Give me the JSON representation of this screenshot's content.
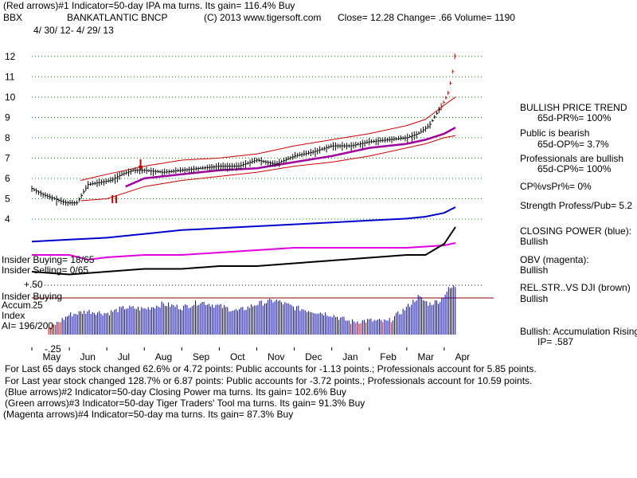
{
  "header": {
    "line1": "(Red arrows)#1 Indicator=50-day IPA ma turns. Its gain= 116.4% Buy",
    "symbol": "BBX",
    "company": "BANKATLANTIC BNCP",
    "copyright": "(C) 2013 www.tigersoft.com",
    "quote": "Close=  12.28  Change= .66 Volume= 1190",
    "date_range": "4/ 30/ 12- 4/ 29/ 13"
  },
  "sidebar": {
    "trend_title": "BULLISH PRICE TREND",
    "pr": "65d-PR%= 100%",
    "public_label": "Public is bearish",
    "op": "65d-OP%= 3.7%",
    "pro_label": "Professionals are bullish",
    "cp": "65d-CP%= 100%",
    "cpvspr": "CP%vsPr%=  0%",
    "strength": "Strength Profess/Pub= 5.2",
    "cp_power_label": "CLOSING POWER (blue):",
    "cp_power_value": "Bullish",
    "obv_label": "OBV (magenta):",
    "obv_value": "Bullish",
    "relstr_label": "REL.STR..VS DJI (brown)",
    "relstr_value": "Bullish",
    "accum_label": "Bullish: Accumulation Rising",
    "ip": "IP=  .587"
  },
  "indicator_panel": {
    "insider_buying": "Insider Buying= 18/65",
    "insider_selling": "Insider Selling= 0/65",
    "insider_buying2": "Insider Buying",
    "accum": "Accum.",
    "index": "Index",
    "ai": "AI= 196/200",
    "level_top": "+.50",
    "level_mid": "+.25",
    "level_bottom": "-.25"
  },
  "footer": {
    "line1": "For Last 65 days stock changed  62.6% or  4.72 points:  Public accounts for -1.13 points.;  Professionals account for  5.85 points.",
    "line2": "For Last year stock changed  128.7% or  6.87 points:  Public accounts for -3.72 points.;  Professionals account for  10.59 points.",
    "line3": "(Blue arrows)#2 Indicator=50-day Closing Power ma turns. Its gain= 102.6% Buy",
    "line4": "(Green arrows)#3 Indicator=50-day Tiger Traders' Tool ma turns. Its gain= 91.3% Buy",
    "line5": "(Magenta arrows)#4 Indicator=50-day ma turns. Its gain= 87.3% Buy"
  },
  "colors": {
    "grid": "#008000",
    "price": "#000000",
    "band": "#cc0000",
    "ma": "#a000a0",
    "closing_power": "#0000cc",
    "obv": "#e000e0",
    "rel_str": "#000000",
    "accum_bars": "#0000aa",
    "accum_neg": "#cc0000",
    "zero_line": "#8b0000",
    "arrow": "#cc0000",
    "green_arrow": "#00a000"
  },
  "chart_data": {
    "type": "line",
    "title": "BBX BANKATLANTIC BNCP",
    "months": [
      "May",
      "Jun",
      "Jul",
      "Aug",
      "Sep",
      "Oct",
      "Nov",
      "Dec",
      "Jan",
      "Feb",
      "Mar",
      "Apr"
    ],
    "y_ticks": [
      4,
      5,
      6,
      7,
      8,
      9,
      10,
      11,
      12
    ],
    "ylim": [
      4,
      12.5
    ],
    "price_series": {
      "name": "Close",
      "x": [
        0,
        0.3,
        0.6,
        0.9,
        1.2,
        1.5,
        1.8,
        2.1,
        2.4,
        2.7,
        3.0,
        3.5,
        4.0,
        4.5,
        5.0,
        5.5,
        6.0,
        6.5,
        7.0,
        7.5,
        8.0,
        8.5,
        9.0,
        9.5,
        10.0,
        10.3,
        10.6,
        10.8,
        11.0,
        11.1,
        11.2,
        11.3
      ],
      "values": [
        5.5,
        5.2,
        5.0,
        4.8,
        4.8,
        5.7,
        5.8,
        5.9,
        6.2,
        6.4,
        6.4,
        6.3,
        6.4,
        6.5,
        6.6,
        6.6,
        6.9,
        6.7,
        7.1,
        7.3,
        7.6,
        7.6,
        7.8,
        7.9,
        8.0,
        8.2,
        8.6,
        9.2,
        9.8,
        10.2,
        11.0,
        12.28
      ]
    },
    "ma_series": {
      "name": "50-day MA",
      "x": [
        2.5,
        3,
        4,
        5,
        6,
        7,
        8,
        9,
        10,
        10.5,
        11,
        11.3
      ],
      "values": [
        5.6,
        6.0,
        6.2,
        6.4,
        6.5,
        6.8,
        7.1,
        7.5,
        7.7,
        7.9,
        8.2,
        8.5
      ]
    },
    "upper_band": {
      "name": "Upper band",
      "x": [
        1.3,
        2,
        3,
        4,
        5,
        6,
        7,
        8,
        9,
        10,
        10.5,
        11,
        11.3
      ],
      "values": [
        5.9,
        6.2,
        6.6,
        6.9,
        7.0,
        7.2,
        7.6,
        7.9,
        8.2,
        8.6,
        8.9,
        9.6,
        10.0
      ]
    },
    "lower_band": {
      "name": "Lower band",
      "x": [
        1.3,
        2,
        3,
        4,
        5,
        6,
        7,
        8,
        9,
        10,
        10.5,
        11,
        11.3
      ],
      "values": [
        4.9,
        5.0,
        5.6,
        5.9,
        6.1,
        6.3,
        6.6,
        6.8,
        7.1,
        7.5,
        7.7,
        8.0,
        8.1
      ]
    },
    "closing_power": {
      "name": "Closing Power",
      "x": [
        0,
        1,
        2,
        3,
        4,
        5,
        6,
        7,
        8,
        9,
        10,
        10.5,
        11,
        11.3
      ],
      "values": [
        0.1,
        0.15,
        0.2,
        0.3,
        0.4,
        0.45,
        0.5,
        0.55,
        0.6,
        0.65,
        0.7,
        0.75,
        0.85,
        1.0
      ]
    },
    "obv": {
      "name": "OBV",
      "x": [
        0,
        1,
        1.5,
        2,
        3,
        4,
        5,
        6,
        7,
        8,
        9,
        10,
        11,
        11.3
      ],
      "values": [
        0.2,
        0.2,
        0.1,
        0.15,
        0.2,
        0.2,
        0.25,
        0.3,
        0.35,
        0.35,
        0.35,
        0.35,
        0.4,
        0.45
      ]
    },
    "rel_str": {
      "name": "Relative Strength vs DJI",
      "x": [
        0,
        1,
        2,
        3,
        4,
        5,
        6,
        7,
        8,
        9,
        10,
        10.5,
        11,
        11.3
      ],
      "values": [
        0.2,
        0.15,
        0.2,
        0.25,
        0.25,
        0.3,
        0.3,
        0.35,
        0.4,
        0.45,
        0.5,
        0.5,
        0.7,
        1.0
      ]
    },
    "accum_index": {
      "name": "Accumulation Index",
      "x": [
        0.5,
        1.0,
        1.5,
        2.0,
        2.5,
        3.0,
        3.5,
        4.0,
        4.5,
        5.0,
        5.5,
        6.0,
        6.5,
        7.0,
        7.5,
        8.0,
        8.5,
        9.0,
        9.5,
        10.0,
        10.3,
        10.6,
        10.9,
        11.1,
        11.3
      ],
      "values": [
        -0.08,
        0.1,
        0.15,
        0.12,
        0.2,
        0.18,
        0.25,
        0.2,
        0.28,
        0.22,
        0.15,
        0.25,
        0.3,
        0.2,
        0.15,
        0.1,
        0.0,
        0.02,
        0.0,
        0.2,
        0.35,
        0.25,
        0.3,
        0.45,
        0.5
      ],
      "ylim": [
        -0.25,
        0.6
      ]
    }
  }
}
